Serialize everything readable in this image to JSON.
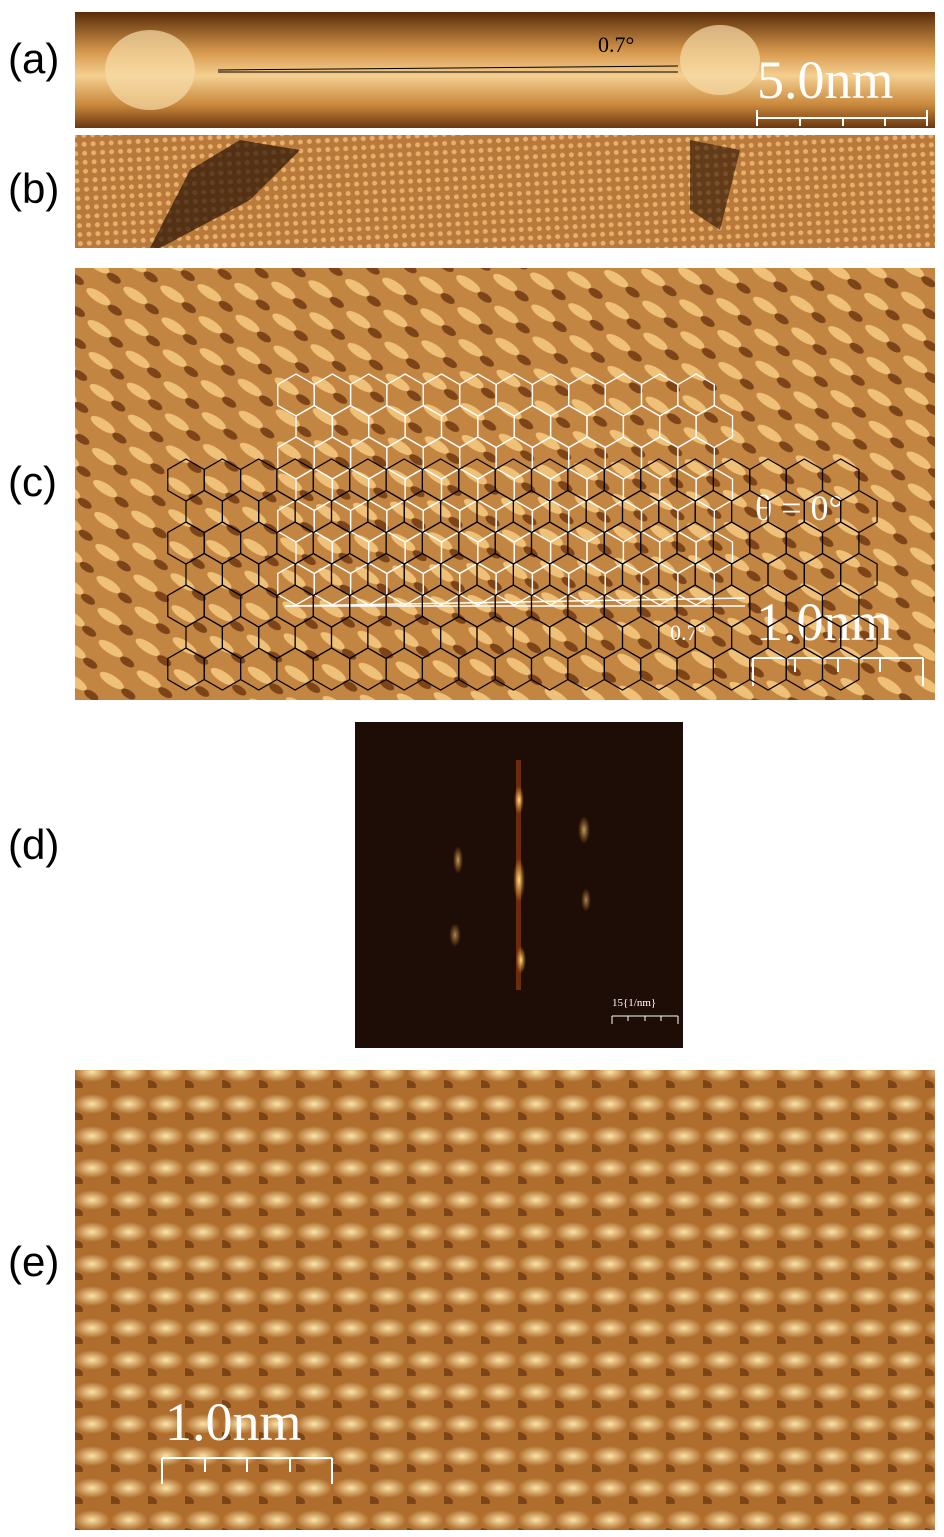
{
  "panels": [
    {
      "label": "(a)",
      "angle_label": "0.7°",
      "scale_label": "5.0nm"
    },
    {
      "label": "(b)"
    },
    {
      "label": "(c)",
      "theta_label": "θ = 0°",
      "angle_label": "0.7°",
      "scale_label": "1.0nm"
    },
    {
      "label": "(d)",
      "scale_label": "15{1/nm}"
    },
    {
      "label": "(e)",
      "scale_label": "1.0nm"
    }
  ]
}
